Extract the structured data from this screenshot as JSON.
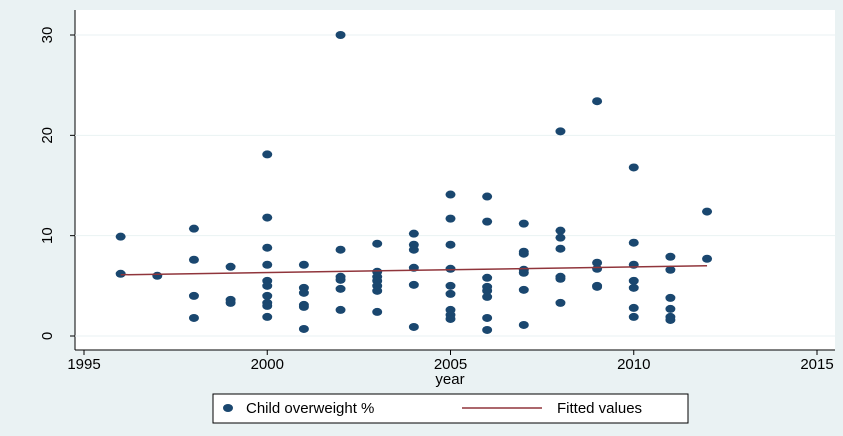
{
  "chart_data": {
    "type": "scatter",
    "x_label": "year",
    "xlim": [
      1995,
      2015
    ],
    "xticks": [
      1995,
      2000,
      2005,
      2010,
      2015
    ],
    "ylim": [
      0,
      30
    ],
    "yticks": [
      0,
      10,
      20,
      30
    ],
    "grid": true,
    "legend": "bottom",
    "series": [
      {
        "name": "Child overweight %",
        "color": "#1a476f",
        "mode": "markers",
        "x": [
          1996,
          1996,
          1997,
          1998,
          1998,
          1998,
          1998,
          1999,
          1999,
          1999,
          2000,
          2000,
          2000,
          2000,
          2000,
          2000,
          2000,
          2000,
          2000,
          2000,
          2001,
          2001,
          2001,
          2001,
          2001,
          2001,
          2002,
          2002,
          2002,
          2002,
          2002,
          2002,
          2003,
          2003,
          2003,
          2003,
          2003,
          2003,
          2003,
          2004,
          2004,
          2004,
          2004,
          2004,
          2004,
          2005,
          2005,
          2005,
          2005,
          2005,
          2005,
          2005,
          2005,
          2005,
          2006,
          2006,
          2006,
          2006,
          2006,
          2006,
          2006,
          2006,
          2007,
          2007,
          2007,
          2007,
          2007,
          2007,
          2007,
          2008,
          2008,
          2008,
          2008,
          2008,
          2008,
          2008,
          2009,
          2009,
          2009,
          2009,
          2009,
          2010,
          2010,
          2010,
          2010,
          2010,
          2010,
          2010,
          2011,
          2011,
          2011,
          2011,
          2011,
          2011,
          2012,
          2012
        ],
        "values": [
          9.9,
          6.2,
          6.0,
          10.7,
          7.6,
          4.0,
          1.8,
          6.9,
          3.6,
          3.3,
          18.1,
          11.8,
          8.8,
          7.1,
          5.5,
          5.0,
          4.0,
          3.3,
          3.0,
          1.9,
          7.1,
          4.8,
          4.3,
          3.1,
          2.9,
          0.7,
          30,
          8.6,
          5.9,
          5.6,
          4.7,
          2.6,
          9.2,
          6.4,
          5.9,
          5.5,
          5.0,
          4.5,
          2.4,
          10.2,
          9.1,
          8.6,
          6.8,
          5.1,
          0.9,
          14.1,
          11.7,
          9.1,
          6.7,
          5.0,
          4.2,
          2.6,
          2.1,
          1.7,
          13.9,
          11.4,
          5.8,
          4.9,
          4.5,
          3.9,
          1.8,
          0.6,
          11.2,
          8.4,
          8.2,
          6.6,
          6.3,
          4.6,
          1.1,
          20.4,
          10.5,
          9.8,
          8.7,
          5.9,
          5.7,
          3.3,
          23.4,
          7.3,
          6.7,
          5.0,
          4.9,
          16.8,
          9.3,
          7.1,
          5.5,
          4.8,
          2.8,
          1.9,
          7.9,
          6.6,
          3.8,
          2.7,
          1.9,
          1.6,
          12.4,
          7.7
        ]
      },
      {
        "name": "Fitted values",
        "color": "#90353b",
        "mode": "line",
        "x": [
          1996,
          2012
        ],
        "values": [
          6.1,
          7.0
        ]
      }
    ]
  }
}
